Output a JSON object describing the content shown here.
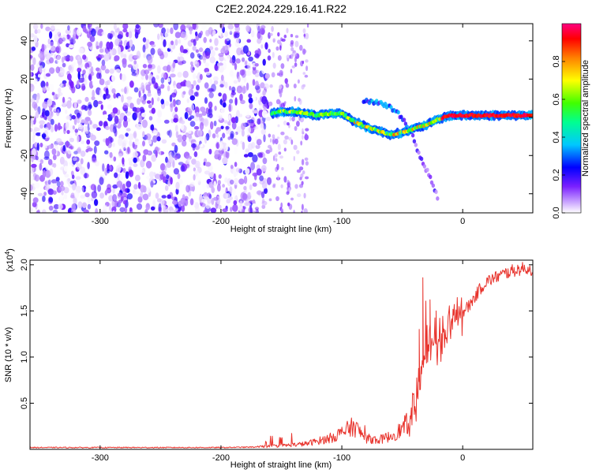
{
  "figure": {
    "title": "C2E2.2024.229.16.41.R22"
  },
  "chart_data": [
    {
      "type": "heatmap",
      "title": "C2E2.2024.229.16.41.R22",
      "xlabel": "Height of straight line (km)",
      "ylabel": "Frequency (Hz)",
      "xlim": [
        -358,
        58
      ],
      "ylim": [
        -50,
        49
      ],
      "x_ticks": [
        -300,
        -200,
        -100,
        0
      ],
      "x_tick_labels": [
        "-300",
        "-200",
        "-100",
        "0"
      ],
      "y_ticks": [
        40,
        20,
        0,
        -20,
        -40
      ],
      "y_tick_labels": [
        "40",
        "20",
        "0",
        "-20",
        "-40"
      ],
      "colorbar": {
        "label": "Normalized spectral amplitude",
        "range": [
          0,
          1
        ],
        "ticks": [
          0.0,
          0.2,
          0.4,
          0.6,
          0.8
        ],
        "tick_labels": [
          "0.0",
          "0.2",
          "0.4",
          "0.6",
          "0.8"
        ],
        "colors": [
          "#ffffff",
          "#b380ff",
          "#6a00ff",
          "#0000ff",
          "#00c8ff",
          "#00ff80",
          "#40ff00",
          "#ffff00",
          "#ff8000",
          "#ff0000",
          "#ff0080"
        ]
      },
      "noise_region": {
        "x_start": -358,
        "x_end": -160,
        "amplitude_range": [
          0.0,
          0.22
        ]
      },
      "sparse_strip": {
        "x_range": [
          -160,
          -128
        ],
        "freq_range": [
          -50,
          49
        ]
      },
      "signal_track": [
        {
          "x": -158,
          "f": 2
        },
        {
          "x": -150,
          "f": 3
        },
        {
          "x": -140,
          "f": 3
        },
        {
          "x": -130,
          "f": 2
        },
        {
          "x": -120,
          "f": 1
        },
        {
          "x": -110,
          "f": 2
        },
        {
          "x": -100,
          "f": 2
        },
        {
          "x": -90,
          "f": -2
        },
        {
          "x": -80,
          "f": -5
        },
        {
          "x": -70,
          "f": -7
        },
        {
          "x": -60,
          "f": -9
        },
        {
          "x": -50,
          "f": -8
        },
        {
          "x": -40,
          "f": -6
        },
        {
          "x": -30,
          "f": -4
        },
        {
          "x": -20,
          "f": -1
        },
        {
          "x": -10,
          "f": 1
        },
        {
          "x": 0,
          "f": 1
        },
        {
          "x": 10,
          "f": 1
        },
        {
          "x": 20,
          "f": 1
        },
        {
          "x": 30,
          "f": 1
        },
        {
          "x": 40,
          "f": 1
        },
        {
          "x": 58,
          "f": 1
        }
      ],
      "secondary_track": [
        {
          "x": -82,
          "f": 9
        },
        {
          "x": -72,
          "f": 8
        },
        {
          "x": -62,
          "f": 6
        },
        {
          "x": -55,
          "f": 3
        },
        {
          "x": -48,
          "f": -2
        },
        {
          "x": -42,
          "f": -8
        },
        {
          "x": -36,
          "f": -20
        },
        {
          "x": -28,
          "f": -30
        },
        {
          "x": -20,
          "f": -43
        }
      ]
    },
    {
      "type": "line",
      "xlabel": "Height of straight line (km)",
      "ylabel": "SNR (10 * v/v)",
      "y_multiplier": "(x10⁴)",
      "y_multiplier_base": "(x10",
      "y_multiplier_exp": "4",
      "y_multiplier_close": ")",
      "xlim": [
        -358,
        58
      ],
      "ylim": [
        0,
        2.05
      ],
      "x_ticks": [
        -300,
        -200,
        -100,
        0
      ],
      "x_tick_labels": [
        "-300",
        "-200",
        "-100",
        "0"
      ],
      "y_ticks": [
        0.5,
        1.0,
        1.5,
        2.0
      ],
      "y_tick_labels": [
        "0.5",
        "1.0",
        "1.5",
        "2.0"
      ],
      "series": [
        {
          "color": "#e8332c",
          "x": [
            -358,
            -300,
            -250,
            -200,
            -170,
            -150,
            -140,
            -130,
            -120,
            -110,
            -100,
            -90,
            -80,
            -70,
            -60,
            -50,
            -45,
            -40,
            -38,
            -35,
            -33,
            -30,
            -27,
            -25,
            -20,
            -15,
            -10,
            -5,
            0,
            5,
            10,
            15,
            20,
            30,
            40,
            50,
            58
          ],
          "y": [
            0.02,
            0.02,
            0.02,
            0.02,
            0.025,
            0.04,
            0.05,
            0.06,
            0.09,
            0.12,
            0.18,
            0.25,
            0.12,
            0.1,
            0.14,
            0.22,
            0.3,
            0.45,
            0.55,
            0.75,
            0.95,
            1.1,
            1.05,
            1.15,
            1.18,
            1.22,
            1.3,
            1.4,
            1.5,
            1.55,
            1.65,
            1.75,
            1.82,
            1.88,
            1.93,
            1.96,
            1.95
          ]
        }
      ]
    }
  ]
}
